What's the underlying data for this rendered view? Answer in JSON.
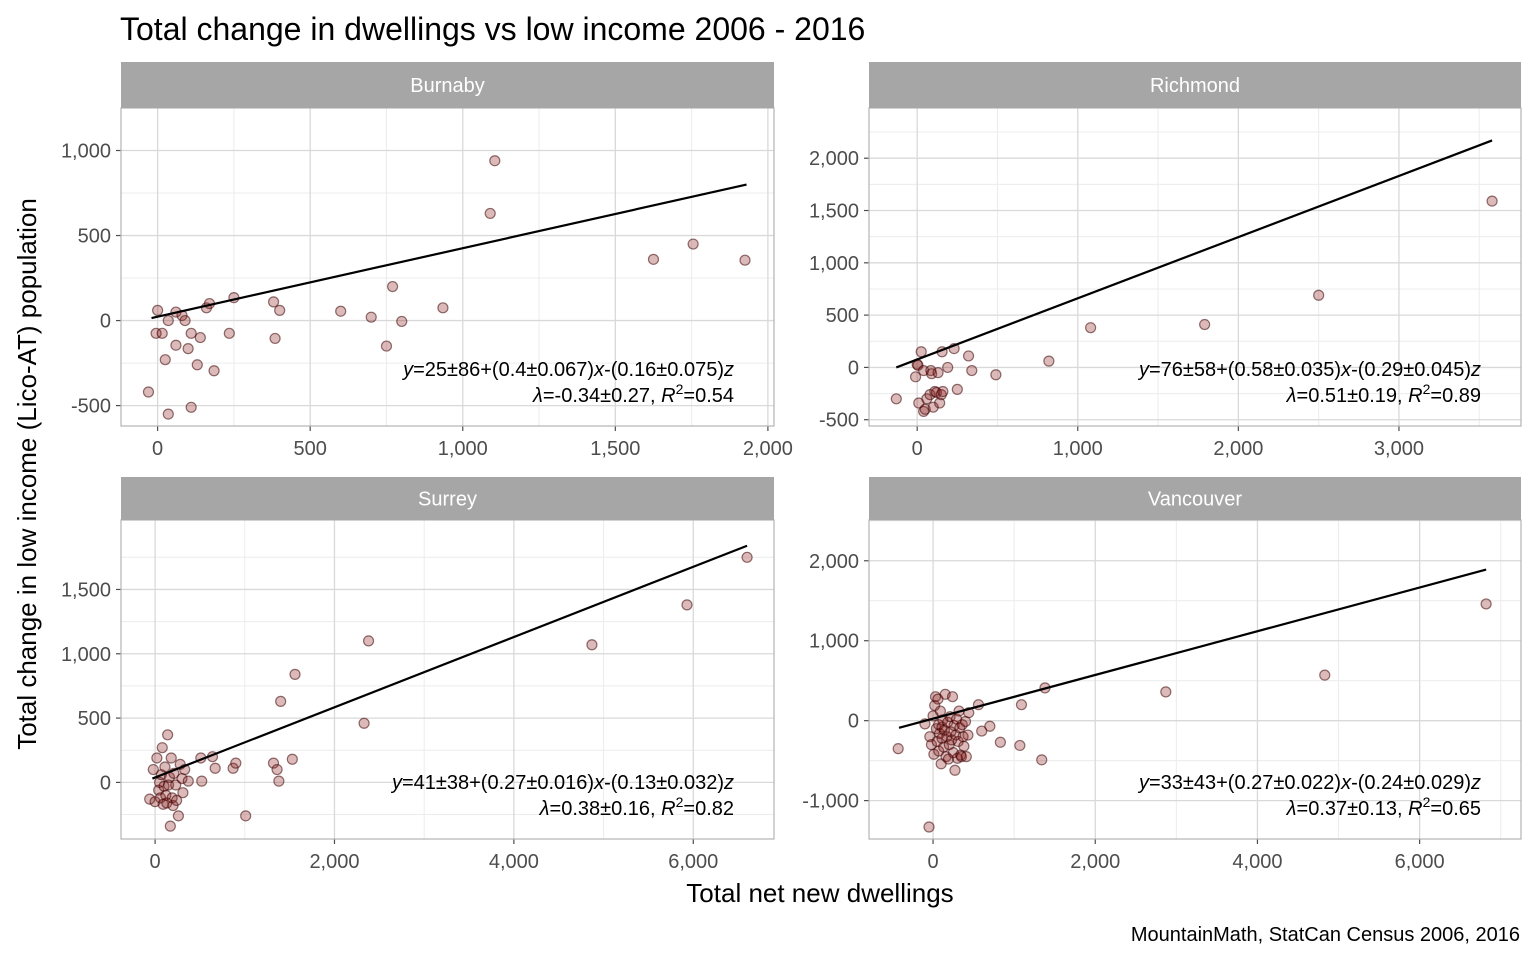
{
  "title": "Total change in dwellings vs low income 2006 - 2016",
  "xlabel": "Total net new dwellings",
  "ylabel": "Total change in low income (Lico-AT) population",
  "caption": "MountainMath, StatCan Census 2006, 2016",
  "colors": {
    "strip": "#a6a6a6",
    "grid": "#d9d9d9",
    "point_fill": "#8b1a1a",
    "point_stroke": "#3a0000",
    "line": "#000000"
  },
  "chart_data": [
    {
      "type": "scatter",
      "panel": "Burnaby",
      "xlim": [
        -120,
        2020
      ],
      "ylim": [
        -620,
        1250
      ],
      "x_ticks": [
        0,
        500,
        1000,
        1500,
        2000
      ],
      "x_tick_labels": [
        "0",
        "500",
        "1,000",
        "1,500",
        "2,000"
      ],
      "y_ticks": [
        -500,
        0,
        500,
        1000
      ],
      "y_tick_labels": [
        "-500",
        "0",
        "500",
        "1,000"
      ],
      "fit": {
        "x": [
          -20,
          1930
        ],
        "y": [
          15,
          800
        ]
      },
      "equation": {
        "pre": "y",
        "mid1": "=25±86+(0.4±0.067)",
        "mid2": "x",
        "mid3": "-(0.16±0.075)",
        "mid4": "z",
        "l2pre": "λ",
        "l2mid": "=-0.34±0.27, ",
        "l2R": "R",
        "l2sup": "2",
        "l2post": "=0.54"
      },
      "points": [
        [
          -30,
          -420
        ],
        [
          0,
          60
        ],
        [
          -5,
          -75
        ],
        [
          15,
          -75
        ],
        [
          25,
          -230
        ],
        [
          35,
          0
        ],
        [
          35,
          -550
        ],
        [
          60,
          50
        ],
        [
          60,
          -145
        ],
        [
          80,
          30
        ],
        [
          90,
          0
        ],
        [
          100,
          -165
        ],
        [
          110,
          -75
        ],
        [
          110,
          -510
        ],
        [
          130,
          -260
        ],
        [
          140,
          -100
        ],
        [
          160,
          75
        ],
        [
          170,
          100
        ],
        [
          185,
          -295
        ],
        [
          235,
          -75
        ],
        [
          250,
          135
        ],
        [
          380,
          110
        ],
        [
          385,
          -105
        ],
        [
          400,
          60
        ],
        [
          600,
          55
        ],
        [
          700,
          20
        ],
        [
          750,
          -150
        ],
        [
          770,
          200
        ],
        [
          800,
          -5
        ],
        [
          935,
          75
        ],
        [
          1090,
          630
        ],
        [
          1105,
          940
        ],
        [
          1625,
          360
        ],
        [
          1755,
          450
        ],
        [
          1925,
          355
        ]
      ]
    },
    {
      "type": "scatter",
      "panel": "Richmond",
      "xlim": [
        -300,
        3760
      ],
      "ylim": [
        -560,
        2480
      ],
      "x_ticks": [
        0,
        1000,
        2000,
        3000
      ],
      "x_tick_labels": [
        "0",
        "1,000",
        "2,000",
        "3,000"
      ],
      "y_ticks": [
        -500,
        0,
        500,
        1000,
        1500,
        2000
      ],
      "y_tick_labels": [
        "-500",
        "0",
        "500",
        "1,000",
        "1,500",
        "2,000"
      ],
      "fit": {
        "x": [
          -130,
          3580
        ],
        "y": [
          0,
          2170
        ]
      },
      "equation": {
        "pre": "y",
        "mid1": "=76±58+(0.58±0.035)",
        "mid2": "x",
        "mid3": "-(0.29±0.045)",
        "mid4": "z",
        "l2pre": "λ",
        "l2mid": "=0.51±0.19, ",
        "l2R": "R",
        "l2sup": "2",
        "l2post": "=0.89"
      },
      "points": [
        [
          -130,
          -300
        ],
        [
          -10,
          -90
        ],
        [
          0,
          30
        ],
        [
          5,
          20
        ],
        [
          10,
          -340
        ],
        [
          25,
          150
        ],
        [
          40,
          -30
        ],
        [
          40,
          -420
        ],
        [
          50,
          -400
        ],
        [
          60,
          -300
        ],
        [
          80,
          -260
        ],
        [
          85,
          -30
        ],
        [
          90,
          -60
        ],
        [
          100,
          -380
        ],
        [
          110,
          -230
        ],
        [
          120,
          -240
        ],
        [
          130,
          -50
        ],
        [
          140,
          -340
        ],
        [
          150,
          -260
        ],
        [
          155,
          150
        ],
        [
          160,
          -230
        ],
        [
          190,
          0
        ],
        [
          230,
          180
        ],
        [
          250,
          -210
        ],
        [
          320,
          110
        ],
        [
          340,
          -30
        ],
        [
          490,
          -70
        ],
        [
          820,
          60
        ],
        [
          1080,
          380
        ],
        [
          1790,
          410
        ],
        [
          2500,
          690
        ],
        [
          3580,
          1590
        ]
      ]
    },
    {
      "type": "scatter",
      "panel": "Surrey",
      "xlim": [
        -380,
        6900
      ],
      "ylim": [
        -440,
        2040
      ],
      "x_ticks": [
        0,
        2000,
        4000,
        6000
      ],
      "x_tick_labels": [
        "0",
        "2,000",
        "4,000",
        "6,000"
      ],
      "y_ticks": [
        0,
        500,
        1000,
        1500
      ],
      "y_tick_labels": [
        "0",
        "500",
        "1,000",
        "1,500"
      ],
      "fit": {
        "x": [
          -30,
          6600
        ],
        "y": [
          30,
          1840
        ]
      },
      "equation": {
        "pre": "y",
        "mid1": "=41±38+(0.27±0.016)",
        "mid2": "x",
        "mid3": "-(0.13±0.032)",
        "mid4": "z",
        "l2pre": "λ",
        "l2mid": "=0.38±0.16, ",
        "l2R": "R",
        "l2sup": "2",
        "l2post": "=0.82"
      },
      "points": [
        [
          -60,
          -130
        ],
        [
          -20,
          100
        ],
        [
          0,
          -150
        ],
        [
          20,
          190
        ],
        [
          40,
          -60
        ],
        [
          50,
          0
        ],
        [
          60,
          -120
        ],
        [
          70,
          60
        ],
        [
          80,
          270
        ],
        [
          90,
          -170
        ],
        [
          100,
          -30
        ],
        [
          110,
          120
        ],
        [
          120,
          -100
        ],
        [
          130,
          -160
        ],
        [
          140,
          370
        ],
        [
          150,
          -20
        ],
        [
          160,
          40
        ],
        [
          170,
          -340
        ],
        [
          180,
          190
        ],
        [
          190,
          -120
        ],
        [
          200,
          -180
        ],
        [
          210,
          70
        ],
        [
          230,
          -20
        ],
        [
          240,
          -140
        ],
        [
          260,
          -260
        ],
        [
          280,
          140
        ],
        [
          300,
          30
        ],
        [
          310,
          -80
        ],
        [
          330,
          100
        ],
        [
          370,
          10
        ],
        [
          510,
          190
        ],
        [
          520,
          10
        ],
        [
          640,
          200
        ],
        [
          670,
          110
        ],
        [
          870,
          110
        ],
        [
          900,
          150
        ],
        [
          1010,
          -260
        ],
        [
          1320,
          150
        ],
        [
          1360,
          100
        ],
        [
          1380,
          10
        ],
        [
          1400,
          630
        ],
        [
          1530,
          180
        ],
        [
          1560,
          840
        ],
        [
          2330,
          460
        ],
        [
          2380,
          1100
        ],
        [
          4870,
          1070
        ],
        [
          5930,
          1380
        ],
        [
          6600,
          1750
        ]
      ]
    },
    {
      "type": "scatter",
      "panel": "Vancouver",
      "xlim": [
        -790,
        7250
      ],
      "ylim": [
        -1480,
        2510
      ],
      "x_ticks": [
        0,
        2000,
        4000,
        6000
      ],
      "x_tick_labels": [
        "0",
        "2,000",
        "4,000",
        "6,000"
      ],
      "y_ticks": [
        -1000,
        0,
        1000,
        2000
      ],
      "y_tick_labels": [
        "-1,000",
        "0",
        "1,000",
        "2,000"
      ],
      "fit": {
        "x": [
          -420,
          6820
        ],
        "y": [
          -90,
          1890
        ]
      },
      "equation": {
        "pre": "y",
        "mid1": "=33±43+(0.27±0.022)",
        "mid2": "x",
        "mid3": "-(0.24±0.029)",
        "mid4": "z",
        "l2pre": "λ",
        "l2mid": "=0.37±0.13, ",
        "l2R": "R",
        "l2sup": "2",
        "l2post": "=0.65"
      },
      "points": [
        [
          -430,
          -350
        ],
        [
          -100,
          -40
        ],
        [
          -50,
          -1330
        ],
        [
          -40,
          -200
        ],
        [
          -20,
          -300
        ],
        [
          0,
          60
        ],
        [
          10,
          -420
        ],
        [
          20,
          190
        ],
        [
          30,
          300
        ],
        [
          40,
          -100
        ],
        [
          50,
          -260
        ],
        [
          60,
          270
        ],
        [
          70,
          -50
        ],
        [
          70,
          -380
        ],
        [
          80,
          -160
        ],
        [
          90,
          120
        ],
        [
          100,
          -540
        ],
        [
          110,
          -220
        ],
        [
          110,
          -80
        ],
        [
          120,
          10
        ],
        [
          130,
          -330
        ],
        [
          140,
          -120
        ],
        [
          150,
          330
        ],
        [
          160,
          -450
        ],
        [
          170,
          -200
        ],
        [
          180,
          -20
        ],
        [
          190,
          -480
        ],
        [
          200,
          -300
        ],
        [
          210,
          50
        ],
        [
          220,
          -140
        ],
        [
          230,
          -240
        ],
        [
          240,
          300
        ],
        [
          250,
          -400
        ],
        [
          260,
          -60
        ],
        [
          270,
          -620
        ],
        [
          280,
          -180
        ],
        [
          290,
          20
        ],
        [
          300,
          -470
        ],
        [
          310,
          -260
        ],
        [
          320,
          120
        ],
        [
          330,
          -90
        ],
        [
          340,
          -430
        ],
        [
          350,
          -450
        ],
        [
          360,
          -50
        ],
        [
          370,
          -200
        ],
        [
          380,
          -320
        ],
        [
          400,
          -10
        ],
        [
          410,
          -450
        ],
        [
          430,
          -180
        ],
        [
          440,
          100
        ],
        [
          560,
          200
        ],
        [
          600,
          -130
        ],
        [
          700,
          -70
        ],
        [
          830,
          -270
        ],
        [
          1070,
          -310
        ],
        [
          1090,
          200
        ],
        [
          1340,
          -490
        ],
        [
          1380,
          410
        ],
        [
          2870,
          360
        ],
        [
          4830,
          570
        ],
        [
          6820,
          1460
        ]
      ]
    }
  ]
}
